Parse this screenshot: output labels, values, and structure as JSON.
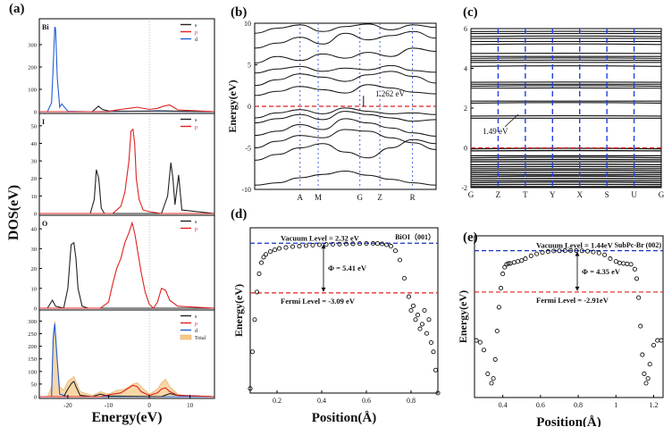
{
  "figure": {
    "panel_labels": [
      "(a)",
      "(b)",
      "(c)",
      "(d)",
      "(e)"
    ]
  },
  "chart_data": [
    {
      "panel": "(a)",
      "type": "line",
      "title": "",
      "xlabel": "Energy(eV)",
      "ylabel": "DOS(eV)",
      "xlim": [
        -27,
        16
      ],
      "xticks": [
        -20,
        -10,
        0,
        10
      ],
      "vline_at": 0,
      "subplots": [
        {
          "name": "Bi",
          "ylim": [
            0,
            400
          ],
          "yticks": [
            0,
            100,
            200,
            300
          ],
          "legend": [
            "s",
            "p",
            "d"
          ],
          "series": [
            {
              "name": "d",
              "color": "#1f5fd6",
              "x": [
                -27,
                -25,
                -24,
                -23.6,
                -23.2,
                -23,
                -22.6,
                -22,
                -21.5,
                -20,
                -15,
                0,
                16
              ],
              "y": [
                0,
                0,
                40,
                200,
                380,
                370,
                150,
                20,
                35,
                2,
                0,
                3,
                0
              ]
            },
            {
              "name": "s",
              "color": "#222222",
              "x": [
                -27,
                -14,
                -12.5,
                -11.5,
                -10,
                -5,
                0,
                2,
                5,
                16
              ],
              "y": [
                0,
                0,
                25,
                10,
                3,
                2,
                2,
                4,
                3,
                0
              ]
            },
            {
              "name": "p",
              "color": "#e02020",
              "x": [
                -27,
                -10,
                -8,
                -5,
                -3,
                0,
                2,
                3.5,
                5,
                7,
                16
              ],
              "y": [
                0,
                0,
                8,
                15,
                20,
                10,
                15,
                25,
                30,
                8,
                0
              ]
            }
          ]
        },
        {
          "name": "I",
          "ylim": [
            0,
            55
          ],
          "yticks": [
            0,
            10,
            20,
            30,
            40,
            50
          ],
          "legend": [
            "s",
            "p"
          ],
          "series": [
            {
              "name": "s",
              "color": "#222222",
              "x": [
                -27,
                -14.5,
                -13.5,
                -13,
                -12.4,
                -11.8,
                -11,
                -6,
                3,
                4.5,
                5.3,
                5.8,
                6.3,
                7.2,
                8,
                16
              ],
              "y": [
                0,
                0,
                8,
                25,
                20,
                3,
                0,
                0,
                0,
                10,
                29,
                20,
                5,
                22,
                2,
                0
              ]
            },
            {
              "name": "p",
              "color": "#e02020",
              "x": [
                -27,
                -9,
                -7,
                -6,
                -5,
                -4.5,
                -4,
                -3.6,
                -3.2,
                -2.5,
                -1.5,
                0,
                3,
                16
              ],
              "y": [
                0,
                0,
                4,
                12,
                30,
                47,
                48,
                40,
                20,
                8,
                2,
                1,
                0,
                0
              ]
            }
          ]
        },
        {
          "name": "O",
          "ylim": [
            0,
            45
          ],
          "yticks": [
            0,
            10,
            20,
            30,
            40
          ],
          "legend": [
            "s",
            "p"
          ],
          "series": [
            {
              "name": "s",
              "color": "#222222",
              "x": [
                -27,
                -25,
                -23.8,
                -23,
                -21,
                -20,
                -19.2,
                -18.5,
                -18,
                -17.5,
                -16.5,
                -15,
                16
              ],
              "y": [
                0,
                0,
                4,
                1,
                0,
                10,
                32,
                33,
                25,
                10,
                1,
                0,
                0
              ]
            },
            {
              "name": "p",
              "color": "#e02020",
              "x": [
                -27,
                -12,
                -10,
                -9,
                -8,
                -7,
                -6,
                -5,
                -4.2,
                -3.5,
                -2.8,
                -2,
                -1,
                0,
                1,
                2,
                3,
                4,
                5,
                7,
                16
              ],
              "y": [
                0,
                0,
                3,
                12,
                20,
                25,
                33,
                38,
                43,
                37,
                28,
                18,
                8,
                2,
                0,
                3,
                10,
                9,
                4,
                1,
                0
              ]
            }
          ]
        },
        {
          "name": "Total",
          "ylim": [
            0,
            330
          ],
          "yticks": [
            0,
            50,
            100,
            150,
            200,
            250,
            300
          ],
          "legend": [
            "s",
            "p",
            "d",
            "Total"
          ],
          "series": [
            {
              "name": "Total",
              "color": "#f5c98a",
              "x": [
                -27,
                -25,
                -24,
                -23.6,
                -23.2,
                -22.6,
                -22,
                -21,
                -20,
                -18.5,
                -17,
                -14,
                -12,
                -10,
                -8,
                -6,
                -4,
                -3,
                -2,
                0,
                2,
                3,
                4,
                5,
                7,
                9,
                16
              ],
              "y": [
                0,
                0,
                40,
                250,
                300,
                150,
                40,
                25,
                60,
                80,
                20,
                5,
                20,
                10,
                25,
                30,
                50,
                55,
                40,
                10,
                30,
                55,
                70,
                40,
                10,
                3,
                0
              ]
            },
            {
              "name": "d",
              "color": "#1f5fd6",
              "x": [
                -27,
                -24,
                -23.6,
                -23.2,
                -22.6,
                -22,
                -20,
                16
              ],
              "y": [
                0,
                0,
                230,
                290,
                140,
                10,
                0,
                0
              ]
            },
            {
              "name": "s",
              "color": "#222222",
              "x": [
                -27,
                -21,
                -20,
                -19,
                -18.5,
                -18,
                -17,
                -14,
                -12,
                -10,
                3,
                5,
                7,
                16
              ],
              "y": [
                0,
                0,
                30,
                55,
                60,
                40,
                5,
                0,
                10,
                2,
                0,
                12,
                5,
                0
              ]
            },
            {
              "name": "p",
              "color": "#e02020",
              "x": [
                -27,
                -12,
                -9,
                -7,
                -5,
                -4,
                -3,
                -2,
                0,
                2,
                3,
                4,
                5,
                7,
                16
              ],
              "y": [
                0,
                0,
                10,
                15,
                35,
                45,
                40,
                20,
                5,
                15,
                30,
                35,
                20,
                5,
                0
              ]
            }
          ]
        }
      ]
    },
    {
      "panel": "(b)",
      "type": "line",
      "title": "",
      "xlabel": "",
      "ylabel": "Energy(eV)",
      "ylim": [
        -10,
        10
      ],
      "yticks": [
        -10,
        -5,
        0,
        5,
        10
      ],
      "kpoints": [
        "A",
        "M",
        "G",
        "Z",
        "R"
      ],
      "kpoint_positions": [
        0.25,
        0.35,
        0.58,
        0.69,
        0.87
      ],
      "fermi_level": 0,
      "annotation": "1.262 eV",
      "bands": [
        {
          "y": [
            -9.5,
            -9.2,
            -8.6,
            -8.2,
            -7.8,
            -8.3,
            -8.8,
            -9.2,
            -9.5
          ]
        },
        {
          "y": [
            -6.5,
            -5.8,
            -5.0,
            -4.5,
            -5.5,
            -6.2,
            -5.0,
            -4.0,
            -4.5
          ]
        },
        {
          "y": [
            -5.0,
            -4.2,
            -3.5,
            -3.8,
            -2.8,
            -3.0,
            -3.8,
            -4.4,
            -5.2
          ]
        },
        {
          "y": [
            -3.5,
            -3.0,
            -2.2,
            -2.8,
            -1.5,
            -2.0,
            -2.6,
            -3.2,
            -3.6
          ]
        },
        {
          "y": [
            -2.0,
            -1.5,
            -1.0,
            -1.6,
            -0.6,
            -1.0,
            -1.4,
            -1.8,
            -1.6
          ]
        },
        {
          "y": [
            -1.4,
            -0.8,
            -0.4,
            -0.9,
            -0.2,
            -0.6,
            -0.9,
            -0.8,
            -1.0
          ]
        },
        {
          "y": [
            1.3,
            1.8,
            2.4,
            2.0,
            1.6,
            2.6,
            2.2,
            1.7,
            1.5
          ]
        },
        {
          "y": [
            2.5,
            3.2,
            3.9,
            3.5,
            3.0,
            3.8,
            4.2,
            3.6,
            2.8
          ]
        },
        {
          "y": [
            4.0,
            4.5,
            4.8,
            4.2,
            4.6,
            4.4,
            4.9,
            4.3,
            4.1
          ]
        },
        {
          "y": [
            5.2,
            6.0,
            5.5,
            6.3,
            5.8,
            6.5,
            6.0,
            7.0,
            6.6
          ]
        },
        {
          "y": [
            7.0,
            7.6,
            8.3,
            7.5,
            8.8,
            8.0,
            8.5,
            9.0,
            8.2
          ]
        },
        {
          "y": [
            8.8,
            9.4,
            9.8,
            9.0,
            9.6,
            9.9,
            9.2,
            9.8,
            9.5
          ]
        }
      ]
    },
    {
      "panel": "(c)",
      "type": "line",
      "title": "",
      "xlabel": "",
      "ylabel": "",
      "ylim": [
        -2,
        6
      ],
      "yticks": [
        -2,
        0,
        2,
        4,
        6
      ],
      "kpoints": [
        "G",
        "Z",
        "T",
        "Y",
        "X",
        "S",
        "U",
        "G"
      ],
      "fermi_level": 0,
      "annotation": "1.49 eV",
      "band_levels": [
        -1.95,
        -1.85,
        -1.75,
        -1.65,
        -1.55,
        -1.45,
        -1.35,
        -1.25,
        -1.15,
        -1.05,
        -0.95,
        -0.85,
        -0.7,
        -0.6,
        -0.5,
        -0.4,
        -0.15,
        -0.05,
        1.49,
        1.6,
        2.25,
        2.35,
        3.0,
        3.1,
        3.2,
        3.3,
        4.1,
        4.3,
        4.4,
        4.5,
        4.6,
        4.75,
        5.2,
        5.35,
        5.5,
        5.6,
        5.75,
        5.85
      ]
    },
    {
      "panel": "(d)",
      "type": "scatter",
      "title": "BiOI（001）",
      "xlabel": "Position(Å)",
      "ylabel": "Energy(eV)",
      "xlim": [
        0.08,
        0.92
      ],
      "xticks": [
        0.2,
        0.4,
        0.6,
        0.8
      ],
      "vacuum_level_label": "Vacuum Level = 2.32 eV",
      "fermi_level_label": "Fermi Level = -3.09 eV",
      "phi_label": "Φ = 5.41 eV",
      "vacuum_level": 2.32,
      "fermi_level": -3.09,
      "ylim": [
        -14,
        4
      ],
      "x": [
        0.08,
        0.09,
        0.1,
        0.11,
        0.12,
        0.13,
        0.14,
        0.15,
        0.17,
        0.19,
        0.21,
        0.24,
        0.27,
        0.3,
        0.33,
        0.36,
        0.39,
        0.42,
        0.45,
        0.48,
        0.51,
        0.54,
        0.57,
        0.6,
        0.63,
        0.65,
        0.67,
        0.69,
        0.71,
        0.73,
        0.75,
        0.77,
        0.79,
        0.8,
        0.81,
        0.82,
        0.83,
        0.84,
        0.85,
        0.86,
        0.87,
        0.88,
        0.89,
        0.9,
        0.91,
        0.92
      ],
      "y": [
        -13.5,
        -9.5,
        -6.0,
        -3.0,
        -1.0,
        0.2,
        0.8,
        1.1,
        1.4,
        1.6,
        1.75,
        1.85,
        1.95,
        2.0,
        2.05,
        2.1,
        2.15,
        2.18,
        2.2,
        2.22,
        2.24,
        2.26,
        2.28,
        2.3,
        2.3,
        2.28,
        2.25,
        2.15,
        2.0,
        1.5,
        0.5,
        -1.5,
        -3.5,
        -5.0,
        -4.5,
        -6.0,
        -5.5,
        -7.0,
        -6.5,
        -5.0,
        -7.5,
        -6.0,
        -8.5,
        -9.5,
        -11.5,
        -14.0
      ]
    },
    {
      "panel": "(e)",
      "type": "scatter",
      "title": "SubPc-Br (002)",
      "xlabel": "Position(Å)",
      "ylabel": "Energy(eV)",
      "xlim": [
        0.25,
        1.25
      ],
      "xticks": [
        0.4,
        0.6,
        0.8,
        1.0,
        1.2
      ],
      "vacuum_level_label": "Vacuum Level = 1.44eV",
      "fermi_level_label": "Fermi Level = -2.91eV",
      "phi_label": "Φ = 4.35 eV",
      "vacuum_level": 1.44,
      "fermi_level": -2.91,
      "ylim": [
        -14,
        3
      ],
      "x": [
        0.26,
        0.28,
        0.3,
        0.32,
        0.34,
        0.35,
        0.36,
        0.37,
        0.38,
        0.39,
        0.4,
        0.41,
        0.42,
        0.43,
        0.44,
        0.46,
        0.48,
        0.5,
        0.52,
        0.55,
        0.58,
        0.61,
        0.64,
        0.67,
        0.7,
        0.73,
        0.76,
        0.79,
        0.82,
        0.85,
        0.88,
        0.91,
        0.94,
        0.97,
        1.0,
        1.02,
        1.04,
        1.06,
        1.08,
        1.1,
        1.11,
        1.12,
        1.13,
        1.14,
        1.15,
        1.16,
        1.17,
        1.18,
        1.2,
        1.22,
        1.24
      ],
      "y": [
        -8.0,
        -8.2,
        -9.0,
        -11.5,
        -12.5,
        -12.0,
        -10.0,
        -7.0,
        -4.5,
        -2.5,
        -1.0,
        -0.3,
        0.0,
        0.1,
        0.1,
        0.2,
        0.3,
        0.4,
        0.6,
        0.9,
        1.1,
        1.25,
        1.35,
        1.4,
        1.42,
        1.44,
        1.44,
        1.44,
        1.42,
        1.38,
        1.3,
        1.2,
        1.0,
        0.6,
        0.3,
        0.15,
        0.1,
        0.05,
        0.0,
        -0.5,
        -1.5,
        -3.5,
        -6.5,
        -9.5,
        -11.5,
        -12.5,
        -12.0,
        -10.5,
        -8.5,
        -8.0,
        -8.0
      ]
    }
  ]
}
